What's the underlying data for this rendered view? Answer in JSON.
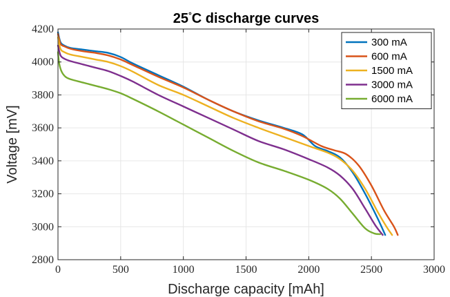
{
  "chart_data": {
    "type": "line",
    "title": "25",
    "title_degree": "°",
    "title_rest": "C discharge curves",
    "xlabel": "Discharge capacity [mAh]",
    "ylabel": "Voltage [mV]",
    "xlim": [
      0,
      3000
    ],
    "ylim": [
      2800,
      4200
    ],
    "xticks": [
      0,
      500,
      1000,
      1500,
      2000,
      2500,
      3000
    ],
    "yticks": [
      2800,
      3000,
      3200,
      3400,
      3600,
      3800,
      4000,
      4200
    ],
    "grid": true,
    "legend_position": "top-right",
    "series": [
      {
        "name": "300 mA",
        "color": "#0072bd",
        "x": [
          0,
          20,
          50,
          100,
          200,
          300,
          400,
          500,
          600,
          800,
          1000,
          1200,
          1400,
          1600,
          1800,
          1950,
          2050,
          2150,
          2250,
          2350,
          2450,
          2550,
          2610
        ],
        "y": [
          4180,
          4120,
          4100,
          4085,
          4075,
          4065,
          4055,
          4030,
          3990,
          3920,
          3850,
          3770,
          3700,
          3645,
          3600,
          3560,
          3490,
          3460,
          3420,
          3330,
          3200,
          3050,
          2950
        ]
      },
      {
        "name": "600 mA",
        "color": "#d95319",
        "x": [
          0,
          20,
          50,
          100,
          200,
          300,
          400,
          500,
          600,
          800,
          1000,
          1200,
          1400,
          1600,
          1800,
          1950,
          2100,
          2200,
          2300,
          2400,
          2500,
          2600,
          2680,
          2710
        ],
        "y": [
          4170,
          4110,
          4095,
          4080,
          4065,
          4055,
          4040,
          4015,
          3980,
          3910,
          3845,
          3770,
          3700,
          3640,
          3595,
          3550,
          3490,
          3465,
          3440,
          3370,
          3250,
          3100,
          3000,
          2950
        ]
      },
      {
        "name": "1500 mA",
        "color": "#edb120",
        "x": [
          0,
          20,
          50,
          100,
          200,
          300,
          400,
          500,
          600,
          800,
          1000,
          1200,
          1400,
          1600,
          1800,
          2000,
          2150,
          2250,
          2350,
          2450,
          2550,
          2620,
          2665
        ],
        "y": [
          4150,
          4080,
          4060,
          4045,
          4030,
          4015,
          4000,
          3975,
          3940,
          3860,
          3800,
          3730,
          3660,
          3600,
          3545,
          3490,
          3450,
          3410,
          3340,
          3230,
          3090,
          3000,
          2950
        ]
      },
      {
        "name": "3000 mA",
        "color": "#7e2f8e",
        "x": [
          0,
          20,
          50,
          100,
          200,
          300,
          400,
          500,
          600,
          800,
          1000,
          1200,
          1400,
          1600,
          1800,
          2000,
          2150,
          2250,
          2350,
          2450,
          2530,
          2590
        ],
        "y": [
          4100,
          4040,
          4020,
          4005,
          3985,
          3965,
          3945,
          3915,
          3880,
          3800,
          3730,
          3660,
          3590,
          3520,
          3470,
          3410,
          3360,
          3310,
          3230,
          3110,
          3010,
          2950
        ]
      },
      {
        "name": "6000 mA",
        "color": "#77ac30",
        "x": [
          0,
          10,
          30,
          60,
          100,
          200,
          300,
          400,
          500,
          600,
          800,
          1000,
          1200,
          1400,
          1600,
          1800,
          2000,
          2150,
          2250,
          2350,
          2450,
          2520,
          2570
        ],
        "y": [
          4060,
          3990,
          3940,
          3910,
          3895,
          3875,
          3855,
          3835,
          3810,
          3775,
          3700,
          3620,
          3540,
          3460,
          3390,
          3340,
          3285,
          3230,
          3170,
          3080,
          2990,
          2960,
          2955
        ]
      }
    ]
  }
}
